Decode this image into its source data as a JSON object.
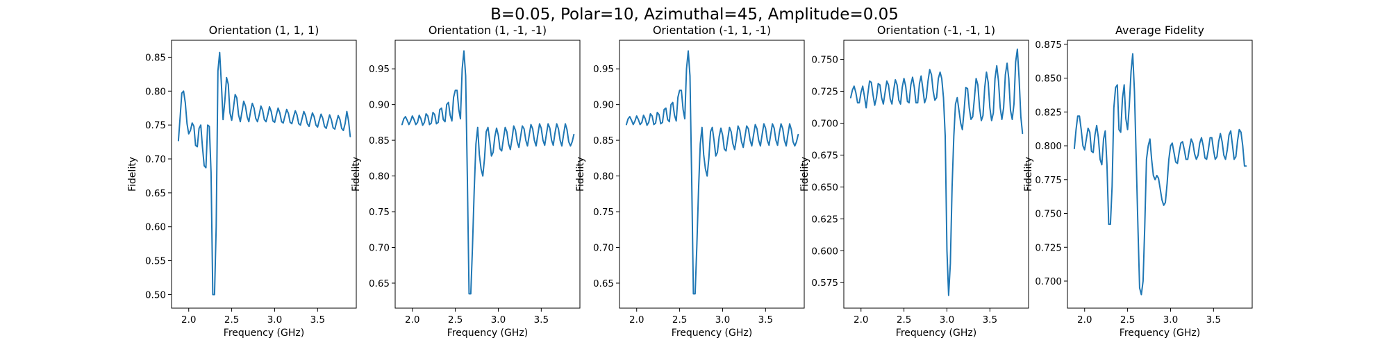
{
  "figure": {
    "suptitle": "B=0.05, Polar=10, Azimuthal=45, Amplitude=0.05"
  },
  "chart_data": [
    {
      "type": "line",
      "title": "Orientation (1, 1, 1)",
      "xlabel": "Frequency (GHz)",
      "ylabel": "Fidelity",
      "xlim": [
        1.8,
        3.95
      ],
      "ylim": [
        0.48,
        0.875
      ],
      "xticks": [
        "2.0",
        "2.5",
        "3.0",
        "3.5"
      ],
      "yticks": [
        "0.50",
        "0.55",
        "0.60",
        "0.65",
        "0.70",
        "0.75",
        "0.80",
        "0.85"
      ],
      "x": [
        1.88,
        1.9,
        1.92,
        1.94,
        1.96,
        1.98,
        2.0,
        2.02,
        2.04,
        2.06,
        2.08,
        2.1,
        2.12,
        2.14,
        2.16,
        2.18,
        2.2,
        2.22,
        2.24,
        2.26,
        2.28,
        2.3,
        2.32,
        2.34,
        2.36,
        2.38,
        2.4,
        2.42,
        2.44,
        2.46,
        2.48,
        2.5,
        2.52,
        2.54,
        2.56,
        2.58,
        2.6,
        2.62,
        2.64,
        2.66,
        2.68,
        2.7,
        2.72,
        2.74,
        2.76,
        2.78,
        2.8,
        2.82,
        2.84,
        2.86,
        2.88,
        2.9,
        2.92,
        2.94,
        2.96,
        2.98,
        3.0,
        3.02,
        3.04,
        3.06,
        3.08,
        3.1,
        3.12,
        3.14,
        3.16,
        3.18,
        3.2,
        3.22,
        3.24,
        3.26,
        3.28,
        3.3,
        3.32,
        3.34,
        3.36,
        3.38,
        3.4,
        3.42,
        3.44,
        3.46,
        3.48,
        3.5,
        3.52,
        3.54,
        3.56,
        3.58,
        3.6,
        3.62,
        3.64,
        3.66,
        3.68,
        3.7,
        3.72,
        3.74,
        3.76,
        3.78,
        3.8,
        3.82,
        3.84,
        3.86,
        3.88
      ],
      "series": [
        {
          "name": "",
          "values": [
            0.727,
            0.762,
            0.797,
            0.8,
            0.783,
            0.752,
            0.737,
            0.742,
            0.753,
            0.748,
            0.72,
            0.718,
            0.745,
            0.75,
            0.718,
            0.69,
            0.687,
            0.75,
            0.748,
            0.68,
            0.5,
            0.5,
            0.6,
            0.83,
            0.857,
            0.81,
            0.758,
            0.785,
            0.82,
            0.81,
            0.768,
            0.757,
            0.775,
            0.795,
            0.79,
            0.765,
            0.755,
            0.77,
            0.785,
            0.778,
            0.762,
            0.755,
            0.77,
            0.782,
            0.775,
            0.76,
            0.755,
            0.765,
            0.778,
            0.772,
            0.758,
            0.755,
            0.765,
            0.777,
            0.77,
            0.756,
            0.754,
            0.765,
            0.775,
            0.768,
            0.755,
            0.753,
            0.763,
            0.773,
            0.767,
            0.754,
            0.752,
            0.762,
            0.771,
            0.765,
            0.752,
            0.75,
            0.76,
            0.77,
            0.764,
            0.752,
            0.748,
            0.758,
            0.768,
            0.762,
            0.75,
            0.747,
            0.757,
            0.766,
            0.76,
            0.748,
            0.745,
            0.755,
            0.765,
            0.758,
            0.746,
            0.744,
            0.754,
            0.764,
            0.758,
            0.745,
            0.742,
            0.752,
            0.77,
            0.756,
            0.733
          ]
        }
      ]
    },
    {
      "type": "line",
      "title": "Orientation (1, -1, -1)",
      "xlabel": "Frequency (GHz)",
      "ylabel": "Fidelity",
      "xlim": [
        1.8,
        3.95
      ],
      "ylim": [
        0.615,
        0.99
      ],
      "xticks": [
        "2.0",
        "2.5",
        "3.0",
        "3.5"
      ],
      "yticks": [
        "0.65",
        "0.70",
        "0.75",
        "0.80",
        "0.85",
        "0.90",
        "0.95"
      ],
      "x": [
        1.88,
        1.9,
        1.92,
        1.94,
        1.96,
        1.98,
        2.0,
        2.02,
        2.04,
        2.06,
        2.08,
        2.1,
        2.12,
        2.14,
        2.16,
        2.18,
        2.2,
        2.22,
        2.24,
        2.26,
        2.28,
        2.3,
        2.32,
        2.34,
        2.36,
        2.38,
        2.4,
        2.42,
        2.44,
        2.46,
        2.48,
        2.5,
        2.52,
        2.54,
        2.56,
        2.58,
        2.6,
        2.62,
        2.64,
        2.66,
        2.68,
        2.7,
        2.72,
        2.74,
        2.76,
        2.78,
        2.8,
        2.82,
        2.84,
        2.86,
        2.88,
        2.9,
        2.92,
        2.94,
        2.96,
        2.98,
        3.0,
        3.02,
        3.04,
        3.06,
        3.08,
        3.1,
        3.12,
        3.14,
        3.16,
        3.18,
        3.2,
        3.22,
        3.24,
        3.26,
        3.28,
        3.3,
        3.32,
        3.34,
        3.36,
        3.38,
        3.4,
        3.42,
        3.44,
        3.46,
        3.48,
        3.5,
        3.52,
        3.54,
        3.56,
        3.58,
        3.6,
        3.62,
        3.64,
        3.66,
        3.68,
        3.7,
        3.72,
        3.74,
        3.76,
        3.78,
        3.8,
        3.82,
        3.84,
        3.86,
        3.88
      ],
      "series": [
        {
          "name": "",
          "values": [
            0.872,
            0.88,
            0.883,
            0.878,
            0.872,
            0.877,
            0.884,
            0.879,
            0.872,
            0.875,
            0.885,
            0.88,
            0.871,
            0.875,
            0.887,
            0.884,
            0.872,
            0.874,
            0.889,
            0.886,
            0.873,
            0.875,
            0.893,
            0.895,
            0.879,
            0.876,
            0.9,
            0.903,
            0.885,
            0.877,
            0.91,
            0.92,
            0.92,
            0.893,
            0.88,
            0.95,
            0.975,
            0.94,
            0.8,
            0.635,
            0.635,
            0.7,
            0.78,
            0.845,
            0.868,
            0.83,
            0.81,
            0.8,
            0.825,
            0.862,
            0.868,
            0.85,
            0.828,
            0.833,
            0.855,
            0.867,
            0.857,
            0.838,
            0.835,
            0.852,
            0.868,
            0.862,
            0.845,
            0.837,
            0.852,
            0.87,
            0.864,
            0.848,
            0.84,
            0.855,
            0.87,
            0.866,
            0.85,
            0.842,
            0.857,
            0.872,
            0.866,
            0.85,
            0.842,
            0.858,
            0.873,
            0.867,
            0.85,
            0.843,
            0.858,
            0.873,
            0.867,
            0.85,
            0.843,
            0.86,
            0.873,
            0.866,
            0.85,
            0.842,
            0.858,
            0.873,
            0.865,
            0.848,
            0.842,
            0.848,
            0.858
          ]
        }
      ]
    },
    {
      "type": "line",
      "title": "Orientation (-1, 1, -1)",
      "xlabel": "Frequency (GHz)",
      "ylabel": "Fidelity",
      "xlim": [
        1.8,
        3.95
      ],
      "ylim": [
        0.615,
        0.99
      ],
      "xticks": [
        "2.0",
        "2.5",
        "3.0",
        "3.5"
      ],
      "yticks": [
        "0.65",
        "0.70",
        "0.75",
        "0.80",
        "0.85",
        "0.90",
        "0.95"
      ],
      "x": [
        1.88,
        1.9,
        1.92,
        1.94,
        1.96,
        1.98,
        2.0,
        2.02,
        2.04,
        2.06,
        2.08,
        2.1,
        2.12,
        2.14,
        2.16,
        2.18,
        2.2,
        2.22,
        2.24,
        2.26,
        2.28,
        2.3,
        2.32,
        2.34,
        2.36,
        2.38,
        2.4,
        2.42,
        2.44,
        2.46,
        2.48,
        2.5,
        2.52,
        2.54,
        2.56,
        2.58,
        2.6,
        2.62,
        2.64,
        2.66,
        2.68,
        2.7,
        2.72,
        2.74,
        2.76,
        2.78,
        2.8,
        2.82,
        2.84,
        2.86,
        2.88,
        2.9,
        2.92,
        2.94,
        2.96,
        2.98,
        3.0,
        3.02,
        3.04,
        3.06,
        3.08,
        3.1,
        3.12,
        3.14,
        3.16,
        3.18,
        3.2,
        3.22,
        3.24,
        3.26,
        3.28,
        3.3,
        3.32,
        3.34,
        3.36,
        3.38,
        3.4,
        3.42,
        3.44,
        3.46,
        3.48,
        3.5,
        3.52,
        3.54,
        3.56,
        3.58,
        3.6,
        3.62,
        3.64,
        3.66,
        3.68,
        3.7,
        3.72,
        3.74,
        3.76,
        3.78,
        3.8,
        3.82,
        3.84,
        3.86,
        3.88
      ],
      "series": [
        {
          "name": "",
          "values": [
            0.872,
            0.88,
            0.883,
            0.878,
            0.872,
            0.877,
            0.884,
            0.879,
            0.872,
            0.875,
            0.885,
            0.88,
            0.871,
            0.875,
            0.887,
            0.884,
            0.872,
            0.874,
            0.889,
            0.886,
            0.873,
            0.875,
            0.893,
            0.895,
            0.879,
            0.876,
            0.9,
            0.903,
            0.885,
            0.877,
            0.91,
            0.92,
            0.92,
            0.893,
            0.88,
            0.95,
            0.975,
            0.94,
            0.8,
            0.635,
            0.635,
            0.7,
            0.78,
            0.845,
            0.868,
            0.83,
            0.81,
            0.8,
            0.825,
            0.862,
            0.868,
            0.85,
            0.828,
            0.833,
            0.855,
            0.867,
            0.857,
            0.838,
            0.835,
            0.852,
            0.868,
            0.862,
            0.845,
            0.837,
            0.852,
            0.87,
            0.864,
            0.848,
            0.84,
            0.855,
            0.87,
            0.866,
            0.85,
            0.842,
            0.857,
            0.872,
            0.866,
            0.85,
            0.842,
            0.858,
            0.873,
            0.867,
            0.85,
            0.843,
            0.858,
            0.873,
            0.867,
            0.85,
            0.843,
            0.86,
            0.873,
            0.866,
            0.85,
            0.842,
            0.858,
            0.873,
            0.865,
            0.848,
            0.842,
            0.848,
            0.858
          ]
        }
      ]
    },
    {
      "type": "line",
      "title": "Orientation (-1, -1, 1)",
      "xlabel": "Frequency (GHz)",
      "ylabel": "Fidelity",
      "xlim": [
        1.8,
        3.95
      ],
      "ylim": [
        0.555,
        0.765
      ],
      "xticks": [
        "2.0",
        "2.5",
        "3.0",
        "3.5"
      ],
      "yticks": [
        "0.575",
        "0.600",
        "0.625",
        "0.650",
        "0.675",
        "0.700",
        "0.725",
        "0.750"
      ],
      "x": [
        1.88,
        1.9,
        1.92,
        1.94,
        1.96,
        1.98,
        2.0,
        2.02,
        2.04,
        2.06,
        2.08,
        2.1,
        2.12,
        2.14,
        2.16,
        2.18,
        2.2,
        2.22,
        2.24,
        2.26,
        2.28,
        2.3,
        2.32,
        2.34,
        2.36,
        2.38,
        2.4,
        2.42,
        2.44,
        2.46,
        2.48,
        2.5,
        2.52,
        2.54,
        2.56,
        2.58,
        2.6,
        2.62,
        2.64,
        2.66,
        2.68,
        2.7,
        2.72,
        2.74,
        2.76,
        2.78,
        2.8,
        2.82,
        2.84,
        2.86,
        2.88,
        2.9,
        2.92,
        2.94,
        2.96,
        2.98,
        3.0,
        3.02,
        3.04,
        3.06,
        3.08,
        3.1,
        3.12,
        3.14,
        3.16,
        3.18,
        3.2,
        3.22,
        3.24,
        3.26,
        3.28,
        3.3,
        3.32,
        3.34,
        3.36,
        3.38,
        3.4,
        3.42,
        3.44,
        3.46,
        3.48,
        3.5,
        3.52,
        3.54,
        3.56,
        3.58,
        3.6,
        3.62,
        3.64,
        3.66,
        3.68,
        3.7,
        3.72,
        3.74,
        3.76,
        3.78,
        3.8,
        3.82,
        3.84,
        3.86,
        3.88
      ],
      "series": [
        {
          "name": "",
          "values": [
            0.72,
            0.726,
            0.729,
            0.724,
            0.716,
            0.716,
            0.724,
            0.729,
            0.721,
            0.712,
            0.723,
            0.733,
            0.732,
            0.722,
            0.714,
            0.72,
            0.731,
            0.73,
            0.72,
            0.715,
            0.724,
            0.733,
            0.73,
            0.719,
            0.715,
            0.726,
            0.734,
            0.73,
            0.718,
            0.715,
            0.728,
            0.735,
            0.729,
            0.717,
            0.716,
            0.73,
            0.736,
            0.728,
            0.716,
            0.716,
            0.731,
            0.737,
            0.727,
            0.716,
            0.72,
            0.733,
            0.742,
            0.738,
            0.725,
            0.718,
            0.72,
            0.735,
            0.74,
            0.735,
            0.72,
            0.69,
            0.6,
            0.565,
            0.59,
            0.65,
            0.69,
            0.715,
            0.72,
            0.71,
            0.7,
            0.695,
            0.71,
            0.728,
            0.727,
            0.712,
            0.703,
            0.705,
            0.72,
            0.735,
            0.73,
            0.712,
            0.702,
            0.706,
            0.728,
            0.74,
            0.732,
            0.712,
            0.702,
            0.708,
            0.735,
            0.745,
            0.733,
            0.712,
            0.703,
            0.712,
            0.738,
            0.747,
            0.735,
            0.71,
            0.703,
            0.715,
            0.748,
            0.758,
            0.735,
            0.705,
            0.692
          ]
        }
      ]
    },
    {
      "type": "line",
      "title": "Average Fidelity",
      "xlabel": "Frequency (GHz)",
      "ylabel": "Fidelity",
      "xlim": [
        1.8,
        3.95
      ],
      "ylim": [
        0.68,
        0.878
      ],
      "xticks": [
        "2.0",
        "2.5",
        "3.0",
        "3.5"
      ],
      "yticks": [
        "0.700",
        "0.725",
        "0.750",
        "0.775",
        "0.800",
        "0.825",
        "0.850",
        "0.875"
      ],
      "x": [
        1.88,
        1.9,
        1.92,
        1.94,
        1.96,
        1.98,
        2.0,
        2.02,
        2.04,
        2.06,
        2.08,
        2.1,
        2.12,
        2.14,
        2.16,
        2.18,
        2.2,
        2.22,
        2.24,
        2.26,
        2.28,
        2.3,
        2.32,
        2.34,
        2.36,
        2.38,
        2.4,
        2.42,
        2.44,
        2.46,
        2.48,
        2.5,
        2.52,
        2.54,
        2.56,
        2.58,
        2.6,
        2.62,
        2.64,
        2.66,
        2.68,
        2.7,
        2.72,
        2.74,
        2.76,
        2.78,
        2.8,
        2.82,
        2.84,
        2.86,
        2.88,
        2.9,
        2.92,
        2.94,
        2.96,
        2.98,
        3.0,
        3.02,
        3.04,
        3.06,
        3.08,
        3.1,
        3.12,
        3.14,
        3.16,
        3.18,
        3.2,
        3.22,
        3.24,
        3.26,
        3.28,
        3.3,
        3.32,
        3.34,
        3.36,
        3.38,
        3.4,
        3.42,
        3.44,
        3.46,
        3.48,
        3.5,
        3.52,
        3.54,
        3.56,
        3.58,
        3.6,
        3.62,
        3.64,
        3.66,
        3.68,
        3.7,
        3.72,
        3.74,
        3.76,
        3.78,
        3.8,
        3.82,
        3.84,
        3.86,
        3.88
      ],
      "series": [
        {
          "name": "",
          "values": [
            0.798,
            0.812,
            0.822,
            0.822,
            0.812,
            0.8,
            0.797,
            0.805,
            0.813,
            0.81,
            0.796,
            0.795,
            0.808,
            0.815,
            0.806,
            0.79,
            0.786,
            0.805,
            0.811,
            0.786,
            0.742,
            0.742,
            0.77,
            0.828,
            0.843,
            0.845,
            0.812,
            0.81,
            0.835,
            0.845,
            0.82,
            0.812,
            0.83,
            0.855,
            0.868,
            0.84,
            0.79,
            0.74,
            0.695,
            0.69,
            0.7,
            0.74,
            0.79,
            0.8,
            0.805,
            0.79,
            0.778,
            0.775,
            0.778,
            0.776,
            0.768,
            0.76,
            0.756,
            0.758,
            0.772,
            0.79,
            0.8,
            0.802,
            0.795,
            0.788,
            0.787,
            0.795,
            0.802,
            0.803,
            0.797,
            0.79,
            0.79,
            0.798,
            0.805,
            0.802,
            0.794,
            0.79,
            0.793,
            0.802,
            0.806,
            0.8,
            0.791,
            0.79,
            0.797,
            0.806,
            0.806,
            0.797,
            0.79,
            0.792,
            0.803,
            0.809,
            0.803,
            0.793,
            0.79,
            0.797,
            0.808,
            0.811,
            0.801,
            0.79,
            0.792,
            0.804,
            0.812,
            0.81,
            0.8,
            0.785,
            0.785
          ]
        }
      ]
    }
  ]
}
